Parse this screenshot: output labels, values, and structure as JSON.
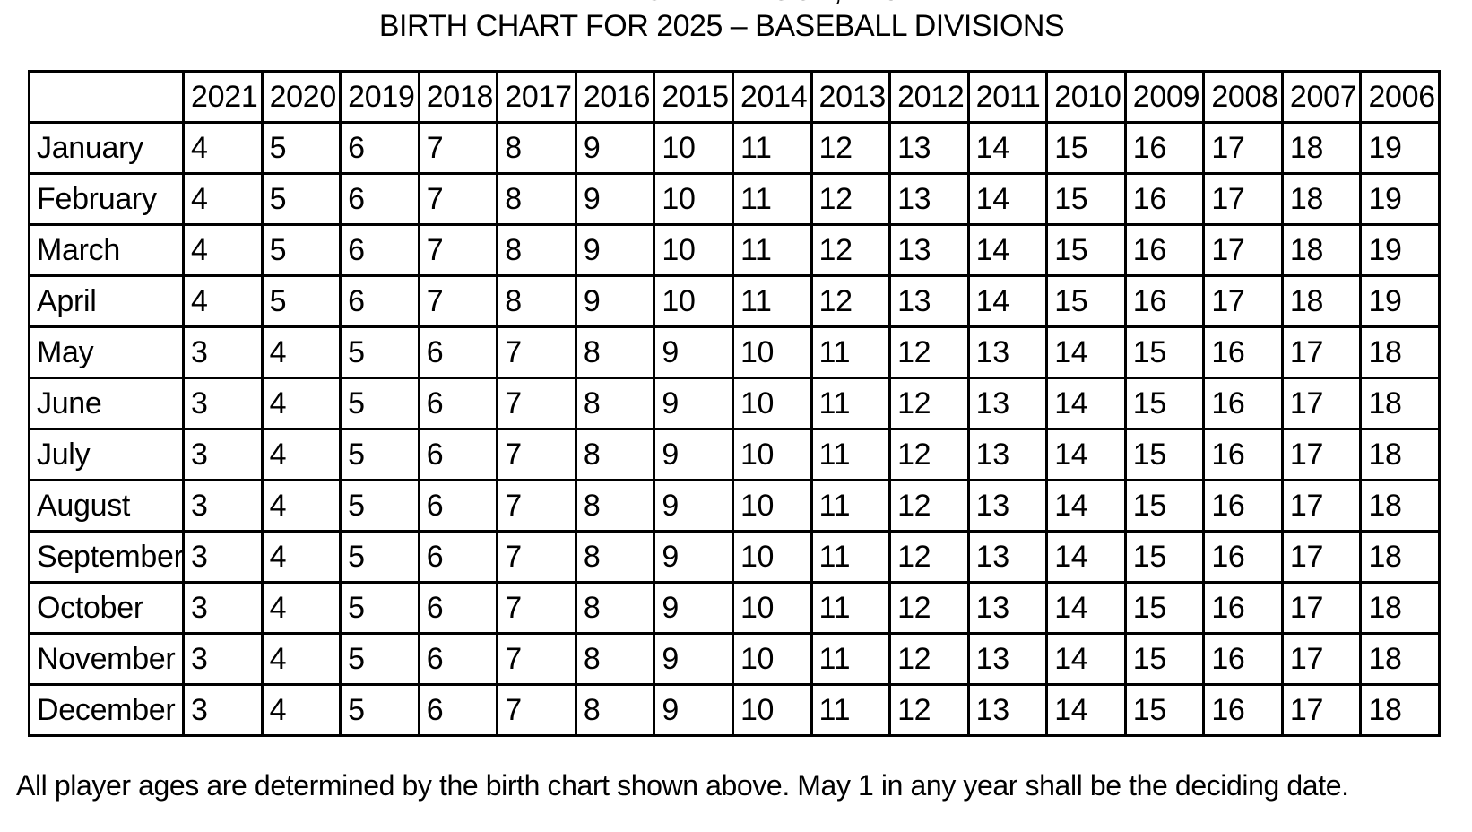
{
  "header": {
    "org_line_clipped": "BABE RUTH LEAGUE, INC.",
    "title": "BIRTH CHART FOR 2025 – BASEBALL DIVISIONS"
  },
  "chart_data": {
    "type": "table",
    "title": "BIRTH CHART FOR 2025 – BASEBALL DIVISIONS",
    "corner_label": "",
    "columns": [
      "2021",
      "2020",
      "2019",
      "2018",
      "2017",
      "2016",
      "2015",
      "2014",
      "2013",
      "2012",
      "2011",
      "2010",
      "2009",
      "2008",
      "2007",
      "2006"
    ],
    "rows": [
      {
        "label": "January",
        "values": [
          4,
          5,
          6,
          7,
          8,
          9,
          10,
          11,
          12,
          13,
          14,
          15,
          16,
          17,
          18,
          19
        ]
      },
      {
        "label": "February",
        "values": [
          4,
          5,
          6,
          7,
          8,
          9,
          10,
          11,
          12,
          13,
          14,
          15,
          16,
          17,
          18,
          19
        ]
      },
      {
        "label": "March",
        "values": [
          4,
          5,
          6,
          7,
          8,
          9,
          10,
          11,
          12,
          13,
          14,
          15,
          16,
          17,
          18,
          19
        ]
      },
      {
        "label": "April",
        "values": [
          4,
          5,
          6,
          7,
          8,
          9,
          10,
          11,
          12,
          13,
          14,
          15,
          16,
          17,
          18,
          19
        ]
      },
      {
        "label": "May",
        "values": [
          3,
          4,
          5,
          6,
          7,
          8,
          9,
          10,
          11,
          12,
          13,
          14,
          15,
          16,
          17,
          18
        ]
      },
      {
        "label": "June",
        "values": [
          3,
          4,
          5,
          6,
          7,
          8,
          9,
          10,
          11,
          12,
          13,
          14,
          15,
          16,
          17,
          18
        ]
      },
      {
        "label": "July",
        "values": [
          3,
          4,
          5,
          6,
          7,
          8,
          9,
          10,
          11,
          12,
          13,
          14,
          15,
          16,
          17,
          18
        ]
      },
      {
        "label": "August",
        "values": [
          3,
          4,
          5,
          6,
          7,
          8,
          9,
          10,
          11,
          12,
          13,
          14,
          15,
          16,
          17,
          18
        ]
      },
      {
        "label": "September",
        "values": [
          3,
          4,
          5,
          6,
          7,
          8,
          9,
          10,
          11,
          12,
          13,
          14,
          15,
          16,
          17,
          18
        ]
      },
      {
        "label": "October",
        "values": [
          3,
          4,
          5,
          6,
          7,
          8,
          9,
          10,
          11,
          12,
          13,
          14,
          15,
          16,
          17,
          18
        ]
      },
      {
        "label": "November",
        "values": [
          3,
          4,
          5,
          6,
          7,
          8,
          9,
          10,
          11,
          12,
          13,
          14,
          15,
          16,
          17,
          18
        ]
      },
      {
        "label": "December",
        "values": [
          3,
          4,
          5,
          6,
          7,
          8,
          9,
          10,
          11,
          12,
          13,
          14,
          15,
          16,
          17,
          18
        ]
      }
    ]
  },
  "footnote": "All player ages are determined by the birth chart shown above. May 1 in any year shall be the deciding date.",
  "colors": {
    "text": "#000000",
    "border": "#000000",
    "background": "#ffffff"
  }
}
